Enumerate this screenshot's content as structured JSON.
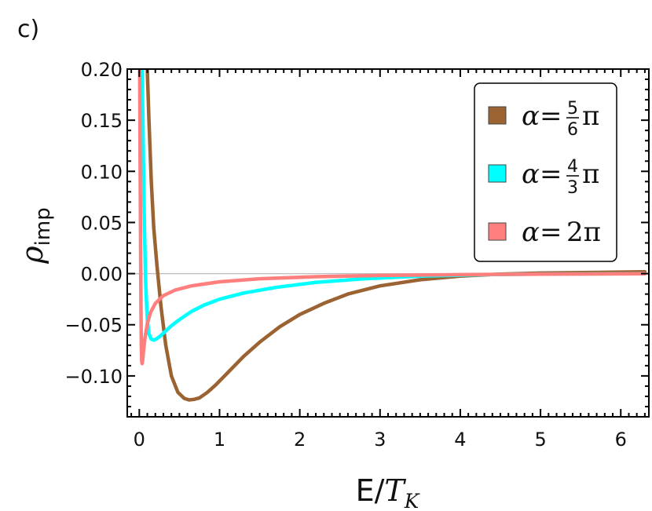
{
  "panel_label": "c)",
  "chart_data": {
    "type": "line",
    "xlabel": "E/T_K",
    "ylabel": "ρ_imp",
    "xlim": [
      -0.15,
      6.35
    ],
    "ylim": [
      -0.14,
      0.2
    ],
    "x_ticks": [
      0,
      1,
      2,
      3,
      4,
      5,
      6
    ],
    "x_tick_labels": [
      "0",
      "1",
      "2",
      "3",
      "4",
      "5",
      "6"
    ],
    "y_ticks": [
      -0.1,
      -0.05,
      0.0,
      0.05,
      0.1,
      0.15,
      0.2
    ],
    "y_tick_labels": [
      "−0.10",
      "−0.05",
      "0.00",
      "0.05",
      "0.10",
      "0.15",
      "0.20"
    ],
    "zero_line": true,
    "legend_position": "top-right",
    "series": [
      {
        "name": "α=5/6π",
        "legend_lhs": "α=",
        "legend_num": "5",
        "legend_den": "6",
        "legend_rhs": "π",
        "color": "#9B6332",
        "x": [
          0.1,
          0.12,
          0.15,
          0.18,
          0.22,
          0.27,
          0.33,
          0.4,
          0.48,
          0.56,
          0.62,
          0.68,
          0.75,
          0.85,
          0.95,
          1.1,
          1.3,
          1.5,
          1.75,
          2.0,
          2.3,
          2.6,
          3.0,
          3.5,
          4.0,
          4.5,
          5.0,
          5.5,
          6.0,
          6.3
        ],
        "y": [
          0.2,
          0.15,
          0.09,
          0.045,
          0.008,
          -0.032,
          -0.07,
          -0.1,
          -0.116,
          -0.122,
          -0.1235,
          -0.123,
          -0.1215,
          -0.116,
          -0.109,
          -0.097,
          -0.081,
          -0.067,
          -0.052,
          -0.04,
          -0.029,
          -0.02,
          -0.012,
          -0.006,
          -0.0025,
          -0.0005,
          0.0005,
          0.001,
          0.0015,
          0.0018
        ]
      },
      {
        "name": "α=4/3π",
        "legend_lhs": "α=",
        "legend_num": "4",
        "legend_den": "3",
        "legend_rhs": "π",
        "color": "#00FFFF",
        "x": [
          0.035,
          0.045,
          0.055,
          0.065,
          0.08,
          0.1,
          0.12,
          0.15,
          0.18,
          0.22,
          0.27,
          0.33,
          0.4,
          0.5,
          0.65,
          0.8,
          1.0,
          1.3,
          1.7,
          2.2,
          2.8,
          3.5,
          4.3,
          5.0,
          6.3
        ],
        "y": [
          0.2,
          0.15,
          0.09,
          0.04,
          -0.01,
          -0.045,
          -0.059,
          -0.064,
          -0.065,
          -0.0635,
          -0.0605,
          -0.056,
          -0.051,
          -0.045,
          -0.037,
          -0.031,
          -0.025,
          -0.019,
          -0.0135,
          -0.0085,
          -0.005,
          -0.0025,
          -0.001,
          -0.0004,
          0.0
        ]
      },
      {
        "name": "α=2π",
        "legend_lhs": "α=",
        "legend_num": "",
        "legend_den": "",
        "legend_rhs": "2π",
        "color": "#FF7F7F",
        "x": [
          0.005,
          0.01,
          0.015,
          0.02,
          0.025,
          0.03,
          0.035,
          0.04,
          0.05,
          0.07,
          0.1,
          0.14,
          0.2,
          0.3,
          0.45,
          0.65,
          1.0,
          1.5,
          2.2,
          3.0,
          4.0,
          5.0,
          6.3
        ],
        "y": [
          0.2,
          0.12,
          0.04,
          -0.03,
          -0.07,
          -0.085,
          -0.088,
          -0.086,
          -0.078,
          -0.063,
          -0.049,
          -0.038,
          -0.029,
          -0.0215,
          -0.016,
          -0.012,
          -0.008,
          -0.005,
          -0.003,
          -0.0018,
          -0.001,
          -0.0005,
          -0.0002
        ]
      }
    ]
  }
}
